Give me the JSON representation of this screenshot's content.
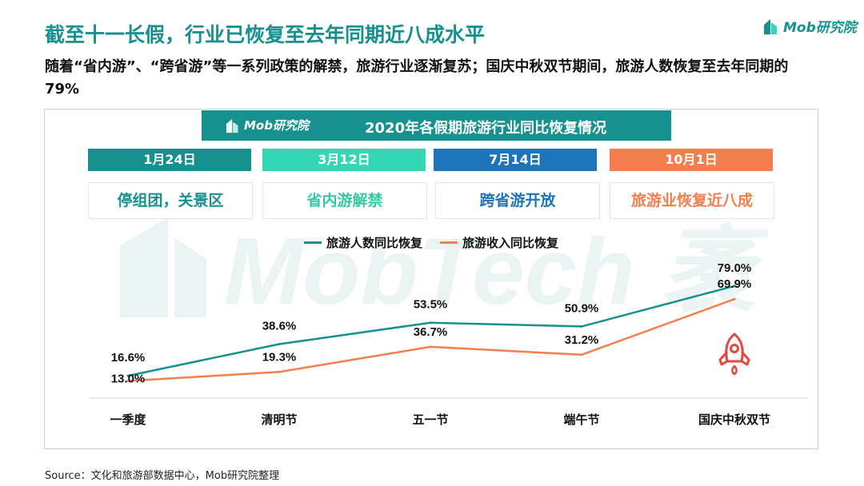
{
  "header": {
    "title": "截至十一长假，行业已恢复至去年同期近八成水平",
    "subtitle": "随着“省内游”、“跨省游”等一系列政策的解禁，旅游行业逐渐复苏；国庆中秋双节期间，旅游人数恢复至去年同期的79%",
    "logo_text": "Mob研究院"
  },
  "banner": {
    "logo_text": "Mob研究院",
    "title": "2020年各假期旅游行业同比恢复情况"
  },
  "milestones": [
    {
      "date": "1月24日",
      "event": "停组团，关景区",
      "color": "#16918f",
      "event_color": "#16918f"
    },
    {
      "date": "3月12日",
      "event": "省内游解禁",
      "color": "#35d6b4",
      "event_color": "#35c9a8"
    },
    {
      "date": "7月14日",
      "event": "跨省游开放",
      "color": "#1d74b8",
      "event_color": "#1d74b8"
    },
    {
      "date": "10月1日",
      "event": "旅游业恢复近八成",
      "color": "#f47e4d",
      "event_color": "#f47e4d"
    }
  ],
  "chart_data": {
    "type": "line",
    "categories": [
      "一季度",
      "清明节",
      "五一节",
      "端午节",
      "国庆中秋双节"
    ],
    "series": [
      {
        "name": "旅游人数同比恢复",
        "values": [
          16.6,
          38.6,
          53.5,
          50.9,
          79.0
        ],
        "labels": [
          "16.6%",
          "38.6%",
          "53.5%",
          "50.9%",
          "79.0%"
        ],
        "color": "#16918f"
      },
      {
        "name": "旅游收入同比恢复",
        "values": [
          13.0,
          19.3,
          36.7,
          31.2,
          69.9
        ],
        "labels": [
          "13.0%",
          "19.3%",
          "36.7%",
          "31.2%",
          "69.9%"
        ],
        "color": "#f47e4d"
      }
    ],
    "title": "2020年各假期旅游行业同比恢复情况",
    "xlabel": "",
    "ylabel": "",
    "ylim": [
      0,
      100
    ],
    "grid": false,
    "legend": "top"
  },
  "footer": {
    "source": "Source：文化和旅游部数据中心，Mob研究院整理"
  },
  "watermark_text": "MobTech 袤博",
  "icons": [
    "mob-logo-icon",
    "rocket-icon"
  ]
}
